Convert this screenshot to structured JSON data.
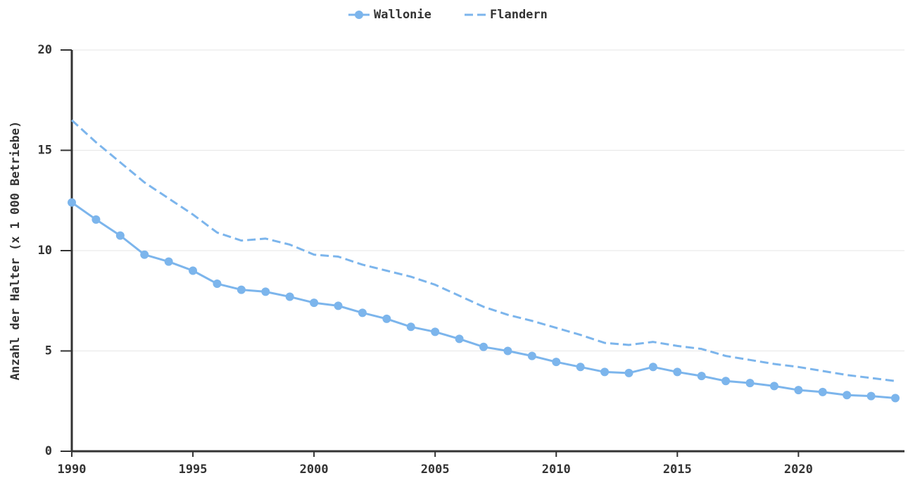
{
  "chart_data": {
    "type": "line",
    "ylabel": "Anzahl der Halter (x 1 000 Betriebe)",
    "x": [
      1990,
      1991,
      1992,
      1993,
      1994,
      1995,
      1996,
      1997,
      1998,
      1999,
      2000,
      2001,
      2002,
      2003,
      2004,
      2005,
      2006,
      2007,
      2008,
      2009,
      2010,
      2011,
      2012,
      2013,
      2014,
      2015,
      2016,
      2017,
      2018,
      2019,
      2020,
      2021,
      2022,
      2023,
      2024
    ],
    "series": [
      {
        "name": "Wallonie",
        "color": "#7cb5ec",
        "dash": false,
        "markers": true,
        "values": [
          12.4,
          11.55,
          10.75,
          9.8,
          9.45,
          9.0,
          8.35,
          8.05,
          7.95,
          7.7,
          7.4,
          7.25,
          6.9,
          6.6,
          6.2,
          5.95,
          5.6,
          5.2,
          5.0,
          4.75,
          4.45,
          4.2,
          3.95,
          3.9,
          4.2,
          3.95,
          3.75,
          3.5,
          3.4,
          3.25,
          3.05,
          2.95,
          2.8,
          2.75,
          2.65
        ]
      },
      {
        "name": "Flandern",
        "color": "#7cb5ec",
        "dash": true,
        "markers": false,
        "values": [
          16.5,
          15.4,
          14.4,
          13.4,
          12.6,
          11.8,
          10.9,
          10.5,
          10.6,
          10.3,
          9.8,
          9.7,
          9.3,
          9.0,
          8.7,
          8.3,
          7.75,
          7.2,
          6.8,
          6.5,
          6.15,
          5.8,
          5.4,
          5.3,
          5.45,
          5.25,
          5.1,
          4.75,
          4.55,
          4.35,
          4.2,
          4.0,
          3.8,
          3.65,
          3.5
        ]
      }
    ],
    "xlim": [
      1990,
      2024
    ],
    "xticks": [
      1990,
      1995,
      2000,
      2005,
      2010,
      2015,
      2020
    ],
    "ylim": [
      0,
      20
    ],
    "yticks": [
      0,
      5,
      10,
      15,
      20
    ],
    "grid": true,
    "legend": "top"
  }
}
